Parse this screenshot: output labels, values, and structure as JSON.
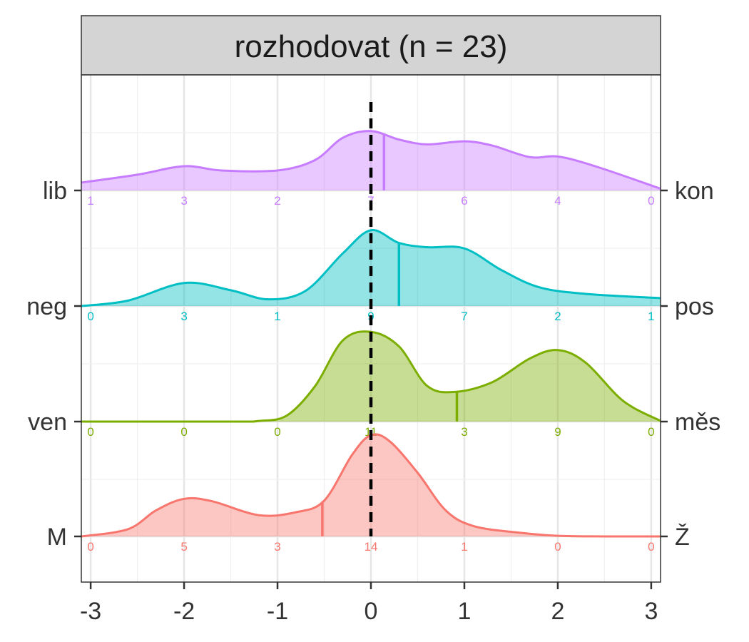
{
  "chart_data": {
    "type": "area",
    "title": "rozhodovat (n = 23)",
    "xlabel": "",
    "ylabel": "",
    "xlim": [
      -3.1,
      3.1
    ],
    "x_ticks": [
      "-3",
      "-2",
      "-1",
      "0",
      "1",
      "2",
      "3"
    ],
    "grid": true,
    "reference_line_x": 0,
    "count_positions": [
      -3,
      -2,
      -1,
      0,
      1,
      2,
      3
    ],
    "series": [
      {
        "left": "lib",
        "right": "kon",
        "color": "#C77CFF",
        "mean": 0.14,
        "counts": [
          "1",
          "3",
          "2",
          "7",
          "6",
          "4",
          "0"
        ],
        "density": [
          [
            -3.1,
            0.13
          ],
          [
            -2.5,
            0.26
          ],
          [
            -2.0,
            0.4
          ],
          [
            -1.6,
            0.33
          ],
          [
            -1.0,
            0.33
          ],
          [
            -0.6,
            0.5
          ],
          [
            -0.3,
            0.87
          ],
          [
            0.0,
            0.98
          ],
          [
            0.3,
            0.84
          ],
          [
            0.6,
            0.76
          ],
          [
            1.0,
            0.81
          ],
          [
            1.3,
            0.74
          ],
          [
            1.7,
            0.55
          ],
          [
            2.0,
            0.56
          ],
          [
            2.4,
            0.4
          ],
          [
            3.1,
            0.03
          ]
        ]
      },
      {
        "left": "neg",
        "right": "pos",
        "color": "#00BFC4",
        "mean": 0.3,
        "counts": [
          "0",
          "3",
          "1",
          "9",
          "7",
          "2",
          "1"
        ],
        "density": [
          [
            -3.1,
            0.0
          ],
          [
            -2.6,
            0.09
          ],
          [
            -2.0,
            0.38
          ],
          [
            -1.5,
            0.26
          ],
          [
            -1.1,
            0.11
          ],
          [
            -0.7,
            0.25
          ],
          [
            -0.3,
            0.87
          ],
          [
            0.0,
            1.25
          ],
          [
            0.3,
            1.04
          ],
          [
            0.6,
            0.97
          ],
          [
            1.0,
            0.95
          ],
          [
            1.4,
            0.59
          ],
          [
            1.8,
            0.31
          ],
          [
            2.3,
            0.2
          ],
          [
            3.1,
            0.13
          ]
        ]
      },
      {
        "left": "ven",
        "right": "měs",
        "color": "#7CAE00",
        "mean": 0.92,
        "counts": [
          "0",
          "0",
          "0",
          "11",
          "3",
          "9",
          "0"
        ],
        "density": [
          [
            -3.1,
            0.0
          ],
          [
            -1.5,
            0.0
          ],
          [
            -1.2,
            0.01
          ],
          [
            -0.9,
            0.1
          ],
          [
            -0.6,
            0.58
          ],
          [
            -0.3,
            1.34
          ],
          [
            0.0,
            1.48
          ],
          [
            0.3,
            1.24
          ],
          [
            0.6,
            0.59
          ],
          [
            0.9,
            0.49
          ],
          [
            1.3,
            0.65
          ],
          [
            1.7,
            1.04
          ],
          [
            2.0,
            1.18
          ],
          [
            2.3,
            0.97
          ],
          [
            2.7,
            0.34
          ],
          [
            3.1,
            0.01
          ]
        ]
      },
      {
        "left": "M",
        "right": "Ž",
        "color": "#F8766D",
        "mean": -0.52,
        "counts": [
          "0",
          "5",
          "3",
          "14",
          "1",
          "0",
          "0"
        ],
        "density": [
          [
            -3.1,
            0.0
          ],
          [
            -2.6,
            0.12
          ],
          [
            -2.3,
            0.43
          ],
          [
            -2.0,
            0.62
          ],
          [
            -1.7,
            0.58
          ],
          [
            -1.2,
            0.35
          ],
          [
            -0.8,
            0.4
          ],
          [
            -0.5,
            0.59
          ],
          [
            -0.2,
            1.35
          ],
          [
            0.0,
            1.67
          ],
          [
            0.2,
            1.57
          ],
          [
            0.5,
            1.05
          ],
          [
            0.8,
            0.43
          ],
          [
            1.1,
            0.17
          ],
          [
            1.6,
            0.06
          ],
          [
            2.0,
            0.01
          ],
          [
            2.5,
            0.0
          ],
          [
            3.1,
            0.0
          ]
        ]
      }
    ]
  }
}
